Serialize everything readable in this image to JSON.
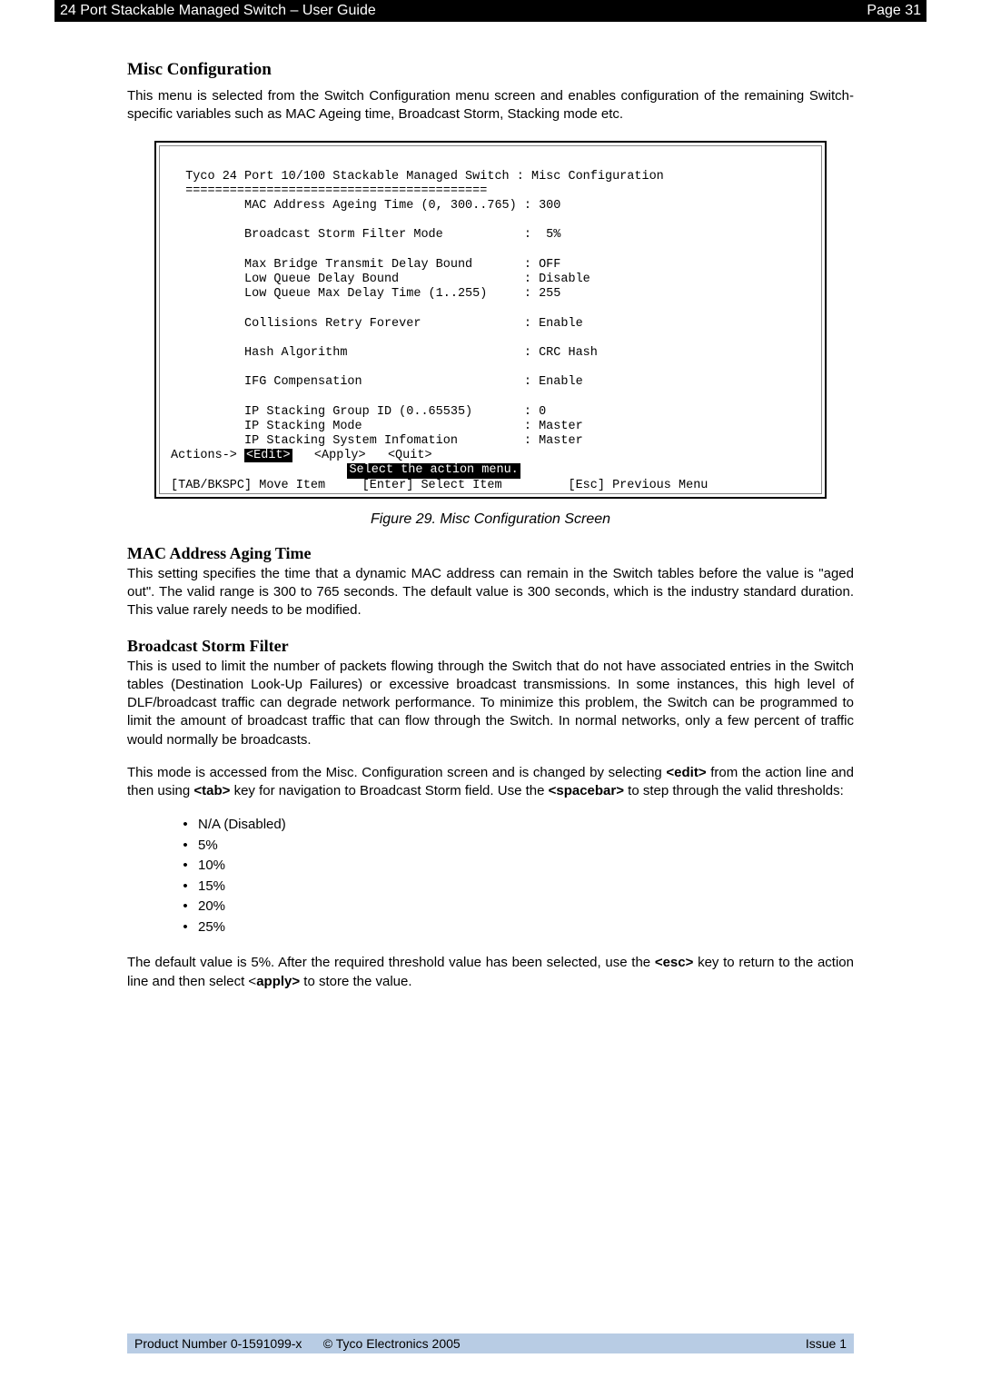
{
  "header": {
    "left_text": "24 Port Stackable Managed Switch – User Guide",
    "right_text": "Page 31"
  },
  "sections": {
    "misc_config": {
      "heading": "Misc Configuration",
      "para": "This menu is selected from the Switch Configuration menu screen and enables configuration of the remaining Switch-specific variables such as MAC Ageing time, Broadcast Storm, Stacking mode etc."
    },
    "mac_aging": {
      "heading": "MAC Address Aging Time",
      "para": "This setting specifies the time that a dynamic MAC address can remain in the Switch tables before the value is \"aged out\". The valid range is 300 to 765 seconds. The default value is 300 seconds, which is the industry standard duration. This value rarely needs to be modified."
    },
    "broadcast_storm": {
      "heading": "Broadcast Storm Filter",
      "para1": "This is used to limit the number of packets flowing through the Switch that do not have associated entries in the Switch tables (Destination Look-Up Failures) or excessive broadcast transmissions. In some instances, this high level of DLF/broadcast traffic can degrade network performance. To minimize this problem, the Switch can be programmed to limit the amount of broadcast traffic that can flow through the Switch. In normal networks, only a few percent of traffic would normally be broadcasts.",
      "para2_prefix": "This mode is accessed from the Misc. Configuration screen and is changed by selecting ",
      "para2_edit": "<edit>",
      "para2_mid1": " from the action line and then using ",
      "para2_tab": "<tab>",
      "para2_mid2": " key for navigation to Broadcast Storm field. Use the ",
      "para2_spacebar": "<spacebar>",
      "para2_suffix": " to step through the valid thresholds:",
      "bullets": [
        "N/A (Disabled)",
        "5%",
        "10%",
        "15%",
        "20%",
        "25%"
      ],
      "para3_prefix": "The default value is 5%. After the required threshold value has been selected, use the ",
      "para3_esc": "<esc>",
      "para3_mid": " key to return to the action line and then select <",
      "para3_apply": "apply>",
      "para3_suffix": " to store the value."
    }
  },
  "terminal": {
    "title": "Tyco 24 Port 10/100 Stackable Managed Switch : Misc Configuration",
    "divider": "=========================================",
    "rows": [
      {
        "label": "          MAC Address Ageing Time (0, 300..765) : 300",
        "value": ""
      },
      null,
      {
        "label": "          Broadcast Storm Filter Mode",
        "value": ":  5%"
      },
      null,
      {
        "label": "          Max Bridge Transmit Delay Bound",
        "value": ": OFF"
      },
      {
        "label": "          Low Queue Delay Bound",
        "value": ": Disable"
      },
      {
        "label": "          Low Queue Max Delay Time (1..255)",
        "value": ": 255"
      },
      null,
      {
        "label": "          Collisions Retry Forever",
        "value": ": Enable"
      },
      null,
      {
        "label": "          Hash Algorithm",
        "value": ": CRC Hash"
      },
      null,
      {
        "label": "          IFG Compensation",
        "value": ": Enable"
      },
      null,
      {
        "label": "          IP Stacking Group ID (0..65535)",
        "value": ": 0"
      },
      {
        "label": "          IP Stacking Mode",
        "value": ": Master"
      },
      {
        "label": "          IP Stacking System Infomation",
        "value": ": Master"
      }
    ],
    "actions_prefix": "Actions-> ",
    "actions_edit": "<Edit>",
    "actions_rest": "   <Apply>   <Quit>",
    "select_line": "Select the action menu.",
    "bottom_left": "[TAB/BKSPC] Move Item",
    "bottom_mid": "[Enter] Select Item",
    "bottom_right": "[Esc] Previous Menu"
  },
  "figure_caption": "Figure 29. Misc Configuration Screen",
  "footer": {
    "left": "Product Number 0-1591099-x",
    "mid": "© Tyco Electronics 2005",
    "right": "Issue 1"
  }
}
